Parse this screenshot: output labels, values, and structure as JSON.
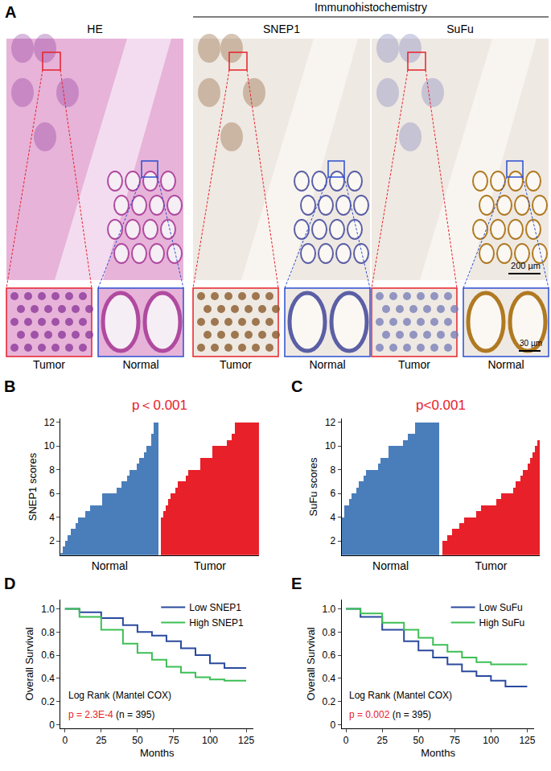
{
  "panel_a": {
    "label": "A",
    "header": "Immunohistochemistry",
    "columns": [
      {
        "title": "HE",
        "insets": [
          "Tumor",
          "Normal"
        ]
      },
      {
        "title": "SNEP1",
        "insets": [
          "Tumor",
          "Normal"
        ]
      },
      {
        "title": "SuFu",
        "insets": [
          "Tumor",
          "Normal"
        ]
      }
    ],
    "scale_bars": [
      "200 µm",
      "30 µm"
    ]
  },
  "chart_data": [
    {
      "type": "bar",
      "panel_label": "B",
      "y_label": "SNEP1 scores",
      "annotations": [
        {
          "text": "p＜0.001",
          "color": "#e8202a"
        }
      ],
      "ylim": [
        0.8,
        12.3
      ],
      "yticks": [
        2,
        4,
        6,
        8,
        10,
        12
      ],
      "series": [
        {
          "name": "Normal",
          "color": "#4a7ebb",
          "values": [
            1,
            1.5,
            2,
            2.5,
            3,
            3,
            3.5,
            4,
            4,
            4,
            4.5,
            4.5,
            5,
            5,
            5,
            5,
            5,
            6,
            6,
            6,
            6,
            6,
            6,
            6.5,
            6.5,
            7,
            7,
            7.5,
            8,
            8,
            8,
            8.5,
            9,
            9,
            9.5,
            10,
            10,
            11,
            12,
            12
          ]
        },
        {
          "name": "Tumor",
          "color": "#e8202a",
          "values": [
            4,
            4.5,
            5,
            5.5,
            6,
            6,
            6.5,
            7,
            7,
            7,
            7.5,
            8,
            8,
            8,
            8,
            8,
            9,
            9,
            9,
            9,
            9,
            10,
            10,
            10,
            10,
            10,
            10,
            10.5,
            10.5,
            11,
            12,
            12,
            12,
            12,
            12,
            12,
            12,
            12,
            12,
            12
          ]
        }
      ]
    },
    {
      "type": "bar",
      "panel_label": "C",
      "y_label": "SuFu scores",
      "annotations": [
        {
          "text": "p<0.001",
          "color": "#e8202a"
        }
      ],
      "ylim": [
        0.8,
        12.3
      ],
      "yticks": [
        2,
        4,
        6,
        8,
        10,
        12
      ],
      "series": [
        {
          "name": "Normal",
          "color": "#4a7ebb",
          "values": [
            4,
            5,
            5,
            5.5,
            6,
            6,
            6.5,
            7,
            7,
            7.5,
            8,
            8,
            8,
            8,
            8,
            8.5,
            9,
            9,
            9,
            10,
            10,
            10,
            10,
            10,
            10,
            10.5,
            10.5,
            11,
            11,
            11,
            12,
            12,
            12,
            12,
            12,
            12,
            12,
            12,
            12,
            12
          ]
        },
        {
          "name": "Tumor",
          "color": "#e8202a",
          "values": [
            2,
            2,
            2.5,
            2.5,
            3,
            3,
            3,
            3.5,
            3.5,
            4,
            4,
            4,
            4,
            4,
            4.5,
            4.5,
            5,
            5,
            5,
            5,
            5,
            5,
            5.5,
            5.5,
            6,
            6,
            6,
            6,
            6,
            6.5,
            7,
            7,
            7.5,
            8,
            8,
            8.5,
            9,
            9.5,
            10,
            10.5
          ]
        }
      ]
    },
    {
      "type": "line",
      "panel_label": "D",
      "x_label": "Months",
      "y_label": "Overall Survival",
      "line_style": "step",
      "legend": "top right",
      "annotations": [
        {
          "text": "Log Rank (Mantel COX)"
        },
        {
          "text": "p = 2.3E-4",
          "color": "#e8202a"
        },
        {
          "text": "(n = 395)"
        }
      ],
      "x": [
        0,
        10,
        25,
        40,
        50,
        60,
        70,
        80,
        90,
        100,
        110,
        125
      ],
      "xlim": [
        -3,
        130
      ],
      "xticks": [
        0,
        25,
        50,
        75,
        100,
        125
      ],
      "ylim": [
        -0.03,
        1.08
      ],
      "yticks": [
        0,
        0.2,
        0.4,
        0.6,
        0.8,
        {
          "value": 1,
          "label": "1.0"
        }
      ],
      "series": [
        {
          "name": "Low SNEP1",
          "color": "#2b4a9e",
          "values": [
            1,
            0.97,
            0.92,
            0.86,
            0.8,
            0.77,
            0.72,
            0.66,
            0.6,
            0.53,
            0.49,
            0.49
          ]
        },
        {
          "name": "High SNEP1",
          "color": "#3dbf55",
          "values": [
            1,
            0.93,
            0.82,
            0.7,
            0.62,
            0.56,
            0.5,
            0.45,
            0.41,
            0.39,
            0.38,
            0.38
          ]
        }
      ]
    },
    {
      "type": "line",
      "panel_label": "E",
      "x_label": "Months",
      "y_label": "Overall Survival",
      "line_style": "step",
      "legend": "top right",
      "annotations": [
        {
          "text": "Log Rank (Mantel COX)"
        },
        {
          "text": "p = 0.002",
          "color": "#e8202a"
        },
        {
          "text": "(n = 395)"
        }
      ],
      "x": [
        0,
        10,
        25,
        40,
        50,
        60,
        70,
        80,
        90,
        100,
        110,
        125
      ],
      "xlim": [
        -3,
        130
      ],
      "xticks": [
        0,
        25,
        50,
        75,
        100,
        125
      ],
      "ylim": [
        -0.03,
        1.08
      ],
      "yticks": [
        0,
        0.2,
        0.4,
        0.6,
        0.8,
        {
          "value": 1,
          "label": "1.0"
        }
      ],
      "series": [
        {
          "name": "Low SuFu",
          "color": "#2b4a9e",
          "values": [
            1,
            0.93,
            0.82,
            0.72,
            0.64,
            0.58,
            0.52,
            0.46,
            0.42,
            0.38,
            0.33,
            0.33
          ]
        },
        {
          "name": "High SuFu",
          "color": "#3dbf55",
          "values": [
            1,
            0.96,
            0.88,
            0.82,
            0.75,
            0.69,
            0.63,
            0.58,
            0.54,
            0.52,
            0.52,
            0.52
          ]
        }
      ]
    }
  ]
}
